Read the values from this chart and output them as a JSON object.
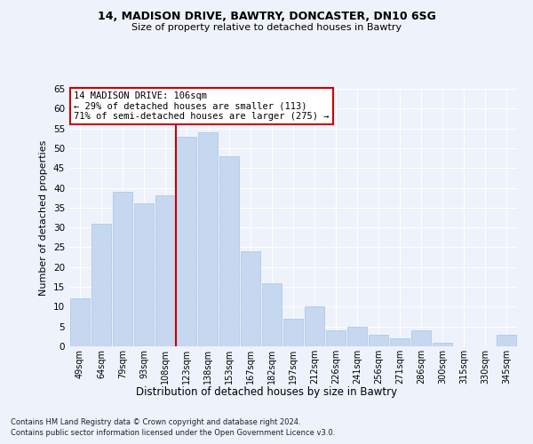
{
  "title1": "14, MADISON DRIVE, BAWTRY, DONCASTER, DN10 6SG",
  "title2": "Size of property relative to detached houses in Bawtry",
  "xlabel": "Distribution of detached houses by size in Bawtry",
  "ylabel": "Number of detached properties",
  "categories": [
    "49sqm",
    "64sqm",
    "79sqm",
    "93sqm",
    "108sqm",
    "123sqm",
    "138sqm",
    "153sqm",
    "167sqm",
    "182sqm",
    "197sqm",
    "212sqm",
    "226sqm",
    "241sqm",
    "256sqm",
    "271sqm",
    "286sqm",
    "300sqm",
    "315sqm",
    "330sqm",
    "345sqm"
  ],
  "values": [
    12,
    31,
    39,
    36,
    38,
    53,
    54,
    48,
    24,
    16,
    7,
    10,
    4,
    5,
    3,
    2,
    4,
    1,
    0,
    0,
    3
  ],
  "bar_color": "#c5d8f0",
  "bar_edgecolor": "#a8c4e0",
  "vline_color": "#cc0000",
  "annotation_lines": [
    "14 MADISON DRIVE: 106sqm",
    "← 29% of detached houses are smaller (113)",
    "71% of semi-detached houses are larger (275) →"
  ],
  "ylim": [
    0,
    65
  ],
  "yticks": [
    0,
    5,
    10,
    15,
    20,
    25,
    30,
    35,
    40,
    45,
    50,
    55,
    60,
    65
  ],
  "bg_color": "#eef2fa",
  "grid_color": "#ffffff",
  "footer1": "Contains HM Land Registry data © Crown copyright and database right 2024.",
  "footer2": "Contains public sector information licensed under the Open Government Licence v3.0."
}
